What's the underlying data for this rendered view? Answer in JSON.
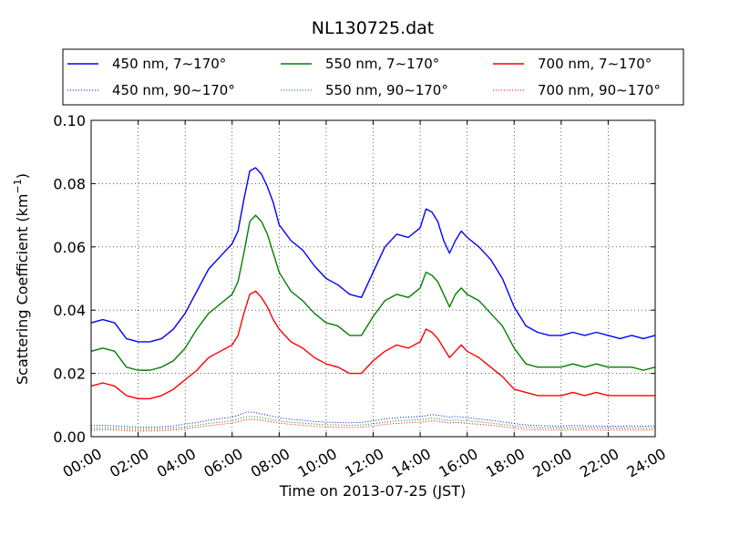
{
  "chart_data": {
    "type": "line",
    "title": "NL130725.dat",
    "xlabel": "Time on 2013-07-25 (JST)",
    "ylabel": "Scattering Coefficient (km",
    "ylabel_sup": "−1",
    "ylabel_tail": ")",
    "xlim": [
      0,
      24
    ],
    "ylim": [
      0,
      0.1
    ],
    "x_unit": "hours",
    "grid": true,
    "legend_position": "top (above axes)",
    "x_ticks": [
      0,
      2,
      4,
      6,
      8,
      10,
      12,
      14,
      16,
      18,
      20,
      22,
      24
    ],
    "x_tick_labels": [
      "00:00",
      "02:00",
      "04:00",
      "06:00",
      "08:00",
      "10:00",
      "12:00",
      "14:00",
      "16:00",
      "18:00",
      "20:00",
      "22:00",
      "24:00"
    ],
    "y_ticks": [
      0,
      0.02,
      0.04,
      0.06,
      0.08,
      0.1
    ],
    "y_tick_labels": [
      "0.00",
      "0.02",
      "0.04",
      "0.06",
      "0.08",
      "0.10"
    ],
    "x": [
      0,
      0.5,
      1,
      1.5,
      2,
      2.5,
      3,
      3.5,
      4,
      4.5,
      5,
      5.5,
      6,
      6.25,
      6.5,
      6.75,
      7,
      7.25,
      7.5,
      7.75,
      8,
      8.5,
      9,
      9.5,
      10,
      10.5,
      11,
      11.5,
      12,
      12.5,
      13,
      13.5,
      14,
      14.25,
      14.5,
      14.75,
      15,
      15.25,
      15.5,
      15.75,
      16,
      16.5,
      17,
      17.5,
      18,
      18.5,
      19,
      19.5,
      20,
      20.5,
      21,
      21.5,
      22,
      22.5,
      23,
      23.5,
      24
    ],
    "series": [
      {
        "name": "450 nm, 7∼170°",
        "color": "#0000ff",
        "style": "solid",
        "values": [
          0.036,
          0.037,
          0.036,
          0.031,
          0.03,
          0.03,
          0.031,
          0.034,
          0.039,
          0.046,
          0.053,
          0.057,
          0.061,
          0.065,
          0.075,
          0.084,
          0.085,
          0.083,
          0.079,
          0.074,
          0.067,
          0.062,
          0.059,
          0.054,
          0.05,
          0.048,
          0.045,
          0.044,
          0.052,
          0.06,
          0.064,
          0.063,
          0.066,
          0.072,
          0.071,
          0.068,
          0.062,
          0.058,
          0.062,
          0.065,
          0.063,
          0.06,
          0.056,
          0.05,
          0.041,
          0.035,
          0.033,
          0.032,
          0.032,
          0.033,
          0.032,
          0.033,
          0.032,
          0.031,
          0.032,
          0.031,
          0.032
        ]
      },
      {
        "name": "550 nm, 7∼170°",
        "color": "#008000",
        "style": "solid",
        "values": [
          0.027,
          0.028,
          0.027,
          0.022,
          0.021,
          0.021,
          0.022,
          0.024,
          0.028,
          0.034,
          0.039,
          0.042,
          0.045,
          0.049,
          0.058,
          0.068,
          0.07,
          0.068,
          0.064,
          0.058,
          0.052,
          0.046,
          0.043,
          0.039,
          0.036,
          0.035,
          0.032,
          0.032,
          0.038,
          0.043,
          0.045,
          0.044,
          0.047,
          0.052,
          0.051,
          0.049,
          0.045,
          0.041,
          0.045,
          0.047,
          0.045,
          0.043,
          0.039,
          0.035,
          0.028,
          0.023,
          0.022,
          0.022,
          0.022,
          0.023,
          0.022,
          0.023,
          0.022,
          0.022,
          0.022,
          0.021,
          0.022
        ]
      },
      {
        "name": "700 nm, 7∼170°",
        "color": "#ff0000",
        "style": "solid",
        "values": [
          0.016,
          0.017,
          0.016,
          0.013,
          0.012,
          0.012,
          0.013,
          0.015,
          0.018,
          0.021,
          0.025,
          0.027,
          0.029,
          0.032,
          0.039,
          0.045,
          0.046,
          0.044,
          0.041,
          0.037,
          0.034,
          0.03,
          0.028,
          0.025,
          0.023,
          0.022,
          0.02,
          0.02,
          0.024,
          0.027,
          0.029,
          0.028,
          0.03,
          0.034,
          0.033,
          0.031,
          0.028,
          0.025,
          0.027,
          0.029,
          0.027,
          0.025,
          0.022,
          0.019,
          0.015,
          0.014,
          0.013,
          0.013,
          0.013,
          0.014,
          0.013,
          0.014,
          0.013,
          0.013,
          0.013,
          0.013,
          0.013
        ]
      },
      {
        "name": "450 nm, 90∼170°",
        "color": "#0000ff",
        "style": "dotted",
        "values": [
          0.0035,
          0.0036,
          0.0034,
          0.0032,
          0.003,
          0.003,
          0.0031,
          0.0034,
          0.004,
          0.0045,
          0.0052,
          0.0057,
          0.0062,
          0.0068,
          0.0075,
          0.0078,
          0.0076,
          0.0072,
          0.0068,
          0.0064,
          0.006,
          0.0055,
          0.0052,
          0.0048,
          0.0046,
          0.0045,
          0.0044,
          0.0045,
          0.005,
          0.0056,
          0.006,
          0.0062,
          0.0064,
          0.0066,
          0.007,
          0.0068,
          0.0065,
          0.0062,
          0.0064,
          0.0062,
          0.006,
          0.0056,
          0.0052,
          0.0047,
          0.0042,
          0.0037,
          0.0035,
          0.0034,
          0.0034,
          0.0035,
          0.0034,
          0.0034,
          0.0033,
          0.0033,
          0.0034,
          0.0033,
          0.0034
        ]
      },
      {
        "name": "550 nm, 90∼170°",
        "color": "#008000",
        "style": "dotted",
        "values": [
          0.0027,
          0.0028,
          0.0027,
          0.0025,
          0.0024,
          0.0024,
          0.0025,
          0.0027,
          0.0031,
          0.0036,
          0.0042,
          0.0046,
          0.005,
          0.0055,
          0.0061,
          0.0064,
          0.0063,
          0.006,
          0.0057,
          0.0053,
          0.005,
          0.0046,
          0.0043,
          0.004,
          0.0038,
          0.0037,
          0.0036,
          0.0037,
          0.0041,
          0.0046,
          0.005,
          0.0052,
          0.0054,
          0.0056,
          0.0059,
          0.0057,
          0.0054,
          0.0051,
          0.0053,
          0.0052,
          0.005,
          0.0047,
          0.0043,
          0.0039,
          0.0034,
          0.003,
          0.0028,
          0.0027,
          0.0027,
          0.0028,
          0.0027,
          0.0028,
          0.0027,
          0.0027,
          0.0027,
          0.0026,
          0.0027
        ]
      },
      {
        "name": "700 nm, 90∼170°",
        "color": "#ff0000",
        "style": "dotted",
        "values": [
          0.0021,
          0.0022,
          0.0021,
          0.0019,
          0.0018,
          0.0018,
          0.0019,
          0.0021,
          0.0025,
          0.003,
          0.0035,
          0.0039,
          0.0043,
          0.0047,
          0.0052,
          0.0055,
          0.0054,
          0.0052,
          0.0049,
          0.0046,
          0.0043,
          0.0039,
          0.0036,
          0.0033,
          0.0031,
          0.003,
          0.0029,
          0.003,
          0.0034,
          0.0039,
          0.0042,
          0.0044,
          0.0046,
          0.0048,
          0.005,
          0.0049,
          0.0046,
          0.0043,
          0.0045,
          0.0044,
          0.0042,
          0.0039,
          0.0036,
          0.0032,
          0.0027,
          0.0023,
          0.0021,
          0.0021,
          0.0021,
          0.0022,
          0.0021,
          0.0021,
          0.0021,
          0.0021,
          0.0021,
          0.002,
          0.0021
        ]
      }
    ],
    "legend_columns": [
      [
        "450 nm, 7∼170°",
        "450 nm, 90∼170°"
      ],
      [
        "550 nm, 7∼170°",
        "550 nm, 90∼170°"
      ],
      [
        "700 nm, 7∼170°",
        "700 nm, 90∼170°"
      ]
    ]
  }
}
